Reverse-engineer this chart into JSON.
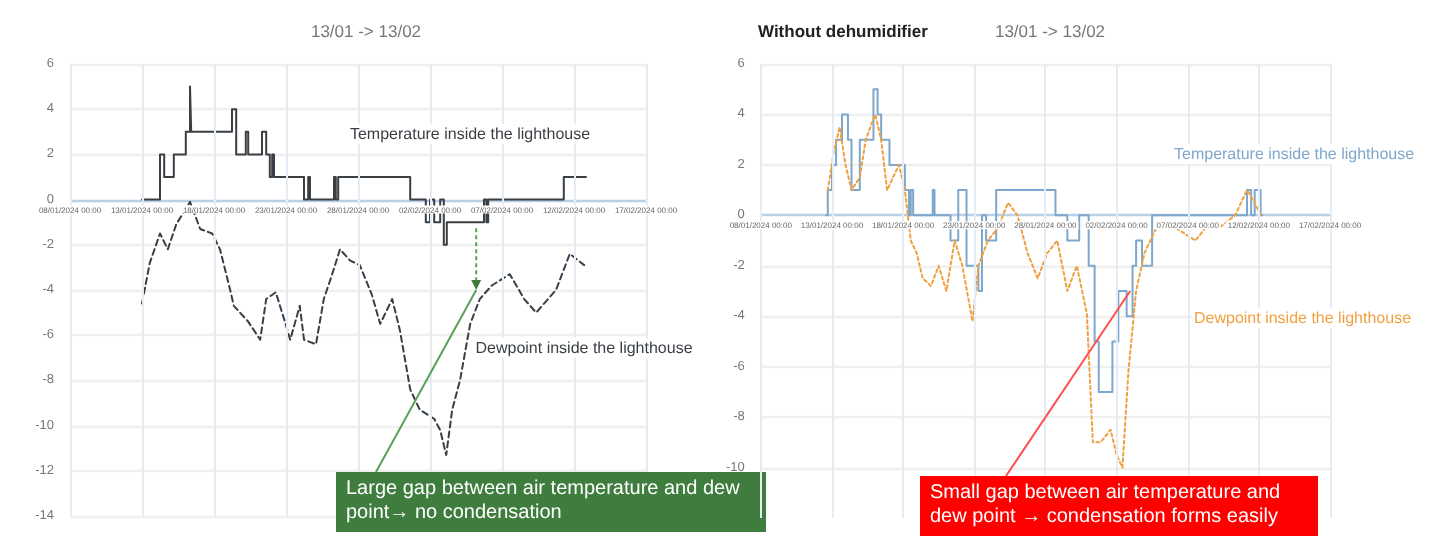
{
  "chart_data": [
    {
      "type": "line",
      "subtitle": "13/01 -> 13/02",
      "xlim": [
        "2024-01-08",
        "2024-02-17"
      ],
      "xticks": [
        {
          "value": "2024-01-08",
          "label": "08/01/2024 00:00"
        },
        {
          "value": "2024-01-13",
          "label": "13/01/2024 00:00"
        },
        {
          "value": "2024-01-18",
          "label": "18/01/2024 00:00"
        },
        {
          "value": "2024-01-23",
          "label": "23/01/2024 00:00"
        },
        {
          "value": "2024-01-28",
          "label": "28/01/2024 00:00"
        },
        {
          "value": "2024-02-02",
          "label": "02/02/2024 00:00"
        },
        {
          "value": "2024-02-07",
          "label": "07/02/2024 00:00"
        },
        {
          "value": "2024-02-12",
          "label": "12/02/2024 00:00"
        },
        {
          "value": "2024-02-17",
          "label": "17/02/2024 00:00"
        }
      ],
      "ylim": [
        -14,
        6
      ],
      "yticks": [
        -14,
        -12,
        -10,
        -8,
        -6,
        -4,
        -2,
        0,
        2,
        4,
        6
      ],
      "grid": true,
      "legend": false,
      "marker": "none",
      "series": [
        {
          "name": "Temperature inside the lighthouse",
          "type": "step",
          "color": "#3a3f44",
          "line_style": "solid",
          "x": [
            "2024-01-13T00:00",
            "2024-01-14T06:00",
            "2024-01-14T13:00",
            "2024-01-15T05:00",
            "2024-01-16T01:00",
            "2024-01-16T08:00",
            "2024-01-16T10:00",
            "2024-01-19T06:00",
            "2024-01-19T13:00",
            "2024-01-20T05:00",
            "2024-01-20T09:00",
            "2024-01-21T08:00",
            "2024-01-21T15:00",
            "2024-01-21T21:00",
            "2024-01-22T01:00",
            "2024-01-22T04:00",
            "2024-01-24T06:00",
            "2024-01-24T13:00",
            "2024-01-24T16:00",
            "2024-01-26T08:00",
            "2024-01-26T11:00",
            "2024-01-26T15:00",
            "2024-01-31T15:00",
            "2024-02-01T17:00",
            "2024-02-02T00:00",
            "2024-02-02T07:00",
            "2024-02-02T17:00",
            "2024-02-02T23:00",
            "2024-02-03T04:00",
            "2024-02-05T18:00",
            "2024-02-05T22:00",
            "2024-02-06T01:00",
            "2024-02-11T07:00",
            "2024-02-12T20:00"
          ],
          "values": [
            0,
            2,
            1,
            2,
            3,
            5,
            3,
            4,
            2,
            3,
            2,
            3,
            2,
            1,
            2,
            1,
            0,
            1,
            0,
            1,
            0,
            1,
            0,
            -1,
            0,
            -1,
            0,
            -2,
            -1,
            0,
            -1,
            0,
            1,
            1
          ]
        },
        {
          "name": "Dewpoint inside the lighthouse",
          "type": "line",
          "color": "#3a3f44",
          "line_style": "dashed",
          "x": [
            "2024-01-13T00:00",
            "2024-01-13T13:00",
            "2024-01-14T06:00",
            "2024-01-14T19:00",
            "2024-01-15T09:00",
            "2024-01-16T08:00",
            "2024-01-17T01:00",
            "2024-01-17T21:00",
            "2024-01-18T10:00",
            "2024-01-19T03:00",
            "2024-01-19T09:00",
            "2024-01-20T09:00",
            "2024-01-21T05:00",
            "2024-01-21T15:00",
            "2024-01-22T07:00",
            "2024-01-22T21:00",
            "2024-01-23T07:00",
            "2024-01-23T23:00",
            "2024-01-24T06:00",
            "2024-01-25T02:00",
            "2024-01-25T15:00",
            "2024-01-26T05:00",
            "2024-01-26T18:00",
            "2024-01-27T11:00",
            "2024-01-28T03:00",
            "2024-01-28T23:00",
            "2024-01-29T13:00",
            "2024-01-30T09:00",
            "2024-01-30T22:00",
            "2024-01-31T15:00",
            "2024-02-01T07:00",
            "2024-02-02T07:00",
            "2024-02-02T17:00",
            "2024-02-03T03:00",
            "2024-02-03T13:00",
            "2024-02-04T02:00",
            "2024-02-04T19:00",
            "2024-02-05T11:00",
            "2024-02-06T07:00",
            "2024-02-07T13:00",
            "2024-02-08T13:00",
            "2024-02-09T09:00",
            "2024-02-10T18:00",
            "2024-02-11T17:00",
            "2024-02-12T17:00"
          ],
          "values": [
            -4.6,
            -2.8,
            -1.5,
            -2.2,
            -1.1,
            -0.1,
            -1.3,
            -1.5,
            -2.2,
            -4,
            -4.7,
            -5.4,
            -6.2,
            -4.4,
            -4.1,
            -5.3,
            -6.2,
            -4.7,
            -6.2,
            -6.4,
            -4.4,
            -3.3,
            -2.2,
            -2.7,
            -2.9,
            -4.2,
            -5.5,
            -4.4,
            -5.8,
            -8.4,
            -9.3,
            -9.7,
            -10.2,
            -11.3,
            -9.3,
            -8,
            -5.5,
            -4.4,
            -3.8,
            -3.3,
            -4.4,
            -5,
            -4,
            -2.4,
            -2.9
          ]
        }
      ],
      "annotations": [
        {
          "text": "Large gap between air temperature and dew point→ no condensation",
          "x": "2024-02-05T05:00",
          "y": -4
        }
      ]
    },
    {
      "type": "line",
      "title": "Without dehumidifier",
      "subtitle": "13/01 -> 13/02",
      "xlim": [
        "2024-01-08",
        "2024-02-17"
      ],
      "xticks": [
        {
          "value": "2024-01-08",
          "label": "08/01/2024 00:00"
        },
        {
          "value": "2024-01-13",
          "label": "13/01/2024 00:00"
        },
        {
          "value": "2024-01-18",
          "label": "18/01/2024 00:00"
        },
        {
          "value": "2024-01-23",
          "label": "23/01/2024 00:00"
        },
        {
          "value": "2024-01-28",
          "label": "28/01/2024 00:00"
        },
        {
          "value": "2024-02-02",
          "label": "02/02/2024 00:00"
        },
        {
          "value": "2024-02-07",
          "label": "07/02/2024 00:00"
        },
        {
          "value": "2024-02-12",
          "label": "12/02/2024 00:00"
        },
        {
          "value": "2024-02-17",
          "label": "17/02/2024 00:00"
        }
      ],
      "ylim": [
        -12,
        6
      ],
      "yticks": [
        -10,
        -8,
        -6,
        -4,
        -2,
        0,
        2,
        4,
        6
      ],
      "grid": true,
      "legend": false,
      "marker": "none",
      "series": [
        {
          "name": "Temperature inside the lighthouse",
          "type": "step",
          "color": "#7ea7cc",
          "line_style": "solid",
          "x": [
            "2024-01-12T14:00",
            "2024-01-12T17:00",
            "2024-01-13T00:00",
            "2024-01-13T07:00",
            "2024-01-13T17:00",
            "2024-01-14T03:00",
            "2024-01-14T09:00",
            "2024-01-14T23:00",
            "2024-01-15T22:00",
            "2024-01-16T05:00",
            "2024-01-16T11:00",
            "2024-01-17T01:00",
            "2024-01-18T03:00",
            "2024-01-18T10:00",
            "2024-01-18T13:00",
            "2024-01-18T17:00",
            "2024-01-20T02:00",
            "2024-01-20T05:00",
            "2024-01-21T08:00",
            "2024-01-21T21:00",
            "2024-01-22T11:00",
            "2024-01-23T07:00",
            "2024-01-23T13:00",
            "2024-01-23T20:00",
            "2024-01-24T13:00",
            "2024-01-28T17:00",
            "2024-01-29T13:00",
            "2024-01-30T09:00",
            "2024-01-31T01:00",
            "2024-01-31T11:00",
            "2024-01-31T18:00",
            "2024-02-01T17:00",
            "2024-02-02T03:00",
            "2024-02-02T17:00",
            "2024-02-03T03:00",
            "2024-02-03T09:00",
            "2024-02-03T19:00",
            "2024-02-04T12:00",
            "2024-02-11T04:00",
            "2024-02-11T11:00",
            "2024-02-11T17:00",
            "2024-02-12T03:00",
            "2024-02-12T06:00"
          ],
          "values": [
            0,
            1,
            2,
            3,
            4,
            3,
            1,
            3,
            5,
            4,
            3,
            2,
            1,
            0,
            1,
            0,
            1,
            0,
            -1,
            1,
            -2,
            -3,
            0,
            -1,
            1,
            0,
            -1,
            0,
            -2,
            -5,
            -7,
            -5,
            -3,
            -4,
            -2,
            -1,
            -2,
            0,
            1,
            0,
            1,
            0,
            0
          ]
        },
        {
          "name": "Dewpoint inside the lighthouse",
          "type": "line",
          "color": "#f0a040",
          "line_style": "dotted",
          "x": [
            "2024-01-12T17:00",
            "2024-01-13T03:00",
            "2024-01-13T13:00",
            "2024-01-13T23:00",
            "2024-01-14T09:00",
            "2024-01-14T23:00",
            "2024-01-15T09:00",
            "2024-01-16T01:00",
            "2024-01-16T11:00",
            "2024-01-16T21:00",
            "2024-01-17T17:00",
            "2024-01-18T03:00",
            "2024-01-18T13:00",
            "2024-01-18T23:00",
            "2024-01-19T09:00",
            "2024-01-19T23:00",
            "2024-01-20T12:00",
            "2024-01-21T01:00",
            "2024-01-21T15:00",
            "2024-01-22T04:00",
            "2024-01-22T21:00",
            "2024-01-23T07:00",
            "2024-01-23T23:00",
            "2024-01-24T16:00",
            "2024-01-25T09:00",
            "2024-01-26T01:00",
            "2024-01-26T18:00",
            "2024-01-27T11:00",
            "2024-01-28T03:00",
            "2024-01-28T20:00",
            "2024-01-29T13:00",
            "2024-01-30T05:00",
            "2024-01-30T22:00",
            "2024-01-31T08:00",
            "2024-01-31T21:00",
            "2024-02-01T14:00",
            "2024-02-02T00:00",
            "2024-02-02T10:00",
            "2024-02-02T20:00",
            "2024-02-03T09:00",
            "2024-02-03T23:00",
            "2024-02-04T19:00",
            "2024-02-06T04:00",
            "2024-02-07T13:00",
            "2024-02-08T06:00",
            "2024-02-09T05:00",
            "2024-02-10T08:00",
            "2024-02-11T04:00",
            "2024-02-11T17:00",
            "2024-02-12T03:00"
          ],
          "values": [
            1,
            2.5,
            3.5,
            2,
            1,
            1.5,
            3,
            4,
            3,
            1,
            2,
            1,
            -1,
            -1.5,
            -2.5,
            -2.8,
            -2,
            -3,
            -1,
            -2,
            -4.2,
            -2,
            -1,
            -0.5,
            0.5,
            0,
            -1.5,
            -2.5,
            -1.5,
            -1,
            -3,
            -2,
            -3.9,
            -9,
            -9,
            -8.5,
            -9.5,
            -10,
            -6.2,
            -3,
            -1.5,
            -0.5,
            -0.5,
            -1,
            -0.5,
            -0.5,
            0,
            1,
            0.5,
            0
          ]
        }
      ],
      "annotations": [
        {
          "text": "Small gap between air temperature and dew point → condensation forms easily",
          "x": "2024-02-02T23:00",
          "y": -3
        }
      ]
    }
  ]
}
